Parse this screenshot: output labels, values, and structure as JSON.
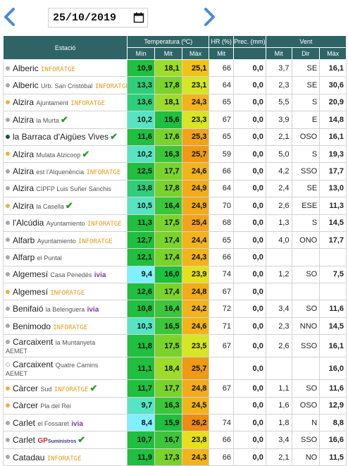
{
  "header": {
    "date": "25/10/2019"
  },
  "columns": {
    "station": "Estació",
    "temperature": "Temperatura (ºC)",
    "hr": "HR (%)",
    "prec": "Prec. (mm)",
    "wind": "Vent",
    "min": "Mín",
    "avg": "Mit",
    "max": "Màx",
    "hr_avg": "Mit",
    "wind_avg": "Mit",
    "wind_dir": "Dir",
    "wind_max": "Màx"
  },
  "colors": {
    "header_bg": "#2e6466",
    "min_scale": [
      "#7ff0ff",
      "#56e4c4",
      "#2ecf7a",
      "#1fbf3f"
    ],
    "avg_scale": [
      "#1fbf3f",
      "#9ddc2a",
      "#d6e622"
    ],
    "max_scale": [
      "#c5e21a",
      "#f2d11a",
      "#f2a31a",
      "#ef8a12"
    ]
  },
  "rows": [
    {
      "name": "Alberic",
      "sub": "",
      "brand": "INFORATGE",
      "brand_type": "inforatge",
      "check": false,
      "dot": "#a7a7a7",
      "min": "10,9",
      "avg": "18,1",
      "max": "25,1",
      "hr": "66",
      "prec": "0,0",
      "wavg": "3,7",
      "wdir": "SE",
      "wmax": "16,1",
      "cmin": "#1fbf3f",
      "cavg": "#9ddc2a",
      "cmax": "#f2c21a"
    },
    {
      "name": "Alberic",
      "sub": "Urb. San Cristóbal",
      "brand": "INFORATGE",
      "brand_type": "inforatge",
      "check": false,
      "dot": "#a7a7a7",
      "min": "13,3",
      "avg": "17,8",
      "max": "23,1",
      "hr": "64",
      "prec": "0,0",
      "wavg": "2,3",
      "wdir": "SE",
      "wmax": "30,6",
      "cmin": "#2ecf7a",
      "cavg": "#79d32a",
      "cmax": "#d6e622"
    },
    {
      "name": "Alzira",
      "sub": "Ajuntament",
      "brand": "INFORATGE",
      "brand_type": "inforatge",
      "check": false,
      "dot": "#e3b44a",
      "min": "13,6",
      "avg": "18,1",
      "max": "24,3",
      "hr": "65",
      "prec": "0,0",
      "wavg": "5,5",
      "wdir": "S",
      "wmax": "20,9",
      "cmin": "#2ecf7a",
      "cavg": "#9ddc2a",
      "cmax": "#f2b41a"
    },
    {
      "name": "Alzira",
      "sub": "la Murta",
      "brand": "",
      "brand_type": "",
      "check": true,
      "dot": "#a7a7a7",
      "min": "10,2",
      "avg": "15,6",
      "max": "23,3",
      "hr": "67",
      "prec": "0,0",
      "wavg": "3,9",
      "wdir": "E",
      "wmax": "14,8",
      "cmin": "#56e4c4",
      "cavg": "#1fbf3f",
      "cmax": "#d6e622"
    },
    {
      "name": "la Barraca d'Aigües Vives",
      "sub": "",
      "brand": "",
      "brand_type": "",
      "check": true,
      "dot": "#1f4f4f",
      "min": "11,6",
      "avg": "17,6",
      "max": "25,3",
      "hr": "65",
      "prec": "0,0",
      "wavg": "2,1",
      "wdir": "OSO",
      "wmax": "16,1",
      "cmin": "#1fbf3f",
      "cavg": "#79d32a",
      "cmax": "#f2a31a"
    },
    {
      "name": "Alzira",
      "sub": "Mulata Alzicoop",
      "brand": "",
      "brand_type": "",
      "check": true,
      "dot": "#e3b44a",
      "min": "10,2",
      "avg": "16,3",
      "max": "25,7",
      "hr": "59",
      "prec": "0,0",
      "wavg": "5,0",
      "wdir": "S",
      "wmax": "19,3",
      "cmin": "#56e4c4",
      "cavg": "#3cc63a",
      "cmax": "#ef9a12"
    },
    {
      "name": "Alzira",
      "sub": "est l'Alquenència",
      "brand": "INFORATGE",
      "brand_type": "inforatge",
      "check": false,
      "dot": "#a7a7a7",
      "min": "12,5",
      "avg": "17,7",
      "max": "24,6",
      "hr": "66",
      "prec": "0,0",
      "wavg": "4,2",
      "wdir": "SSO",
      "wmax": "17,7",
      "cmin": "#1fbf3f",
      "cavg": "#79d32a",
      "cmax": "#f2b41a"
    },
    {
      "name": "Alzira",
      "sub": "CIPFP Luis Suñer Sanchis",
      "brand": "",
      "brand_type": "",
      "check": false,
      "dot": "#a7a7a7",
      "min": "13,8",
      "avg": "17,8",
      "max": "24,9",
      "hr": "64",
      "prec": "0,0",
      "wavg": "2,4",
      "wdir": "SE",
      "wmax": "13,0",
      "cmin": "#2ecf7a",
      "cavg": "#79d32a",
      "cmax": "#f2ac1a"
    },
    {
      "name": "Alzira",
      "sub": "la Casella",
      "brand": "",
      "brand_type": "",
      "check": true,
      "dot": "#e3b44a",
      "min": "10,5",
      "avg": "16,4",
      "max": "24,9",
      "hr": "70",
      "prec": "0,0",
      "wavg": "2,6",
      "wdir": "ESE",
      "wmax": "11,3",
      "cmin": "#56e4c4",
      "cavg": "#3cc63a",
      "cmax": "#f2ac1a"
    },
    {
      "name": "l'Alcúdia",
      "sub": "Ayuntamiento",
      "brand": "INFORATGE",
      "brand_type": "inforatge",
      "check": false,
      "dot": "#a7a7a7",
      "min": "11,3",
      "avg": "17,5",
      "max": "25,4",
      "hr": "68",
      "prec": "0,0",
      "wavg": "1,3",
      "wdir": "S",
      "wmax": "14,5",
      "cmin": "#1fbf3f",
      "cavg": "#79d32a",
      "cmax": "#f2a31a"
    },
    {
      "name": "Alfarb",
      "sub": "Ayuntamiento",
      "brand": "INFORATGE",
      "brand_type": "inforatge",
      "check": false,
      "dot": "#a7a7a7",
      "min": "12,7",
      "avg": "17,4",
      "max": "24,4",
      "hr": "65",
      "prec": "0,0",
      "wavg": "4,0",
      "wdir": "ONO",
      "wmax": "17,7",
      "cmin": "#1fbf3f",
      "cavg": "#79d32a",
      "cmax": "#f2b41a"
    },
    {
      "name": "Alfarp",
      "sub": "el Puntal",
      "brand": "",
      "brand_type": "",
      "check": false,
      "dot": "#a7a7a7",
      "min": "12,1",
      "avg": "17,4",
      "max": "24,3",
      "hr": "66",
      "prec": "0,0",
      "wavg": "",
      "wdir": "",
      "wmax": "",
      "cmin": "#1fbf3f",
      "cavg": "#79d32a",
      "cmax": "#f2b41a"
    },
    {
      "name": "Algemesí",
      "sub": "Casa Penedés",
      "brand": "ivia",
      "brand_type": "ivia",
      "check": false,
      "dot": "#a7a7a7",
      "min": "9,4",
      "avg": "16,0",
      "max": "23,9",
      "hr": "74",
      "prec": "0,0",
      "wavg": "1,2",
      "wdir": "SO",
      "wmax": "7,5",
      "cmin": "#7ff0ff",
      "cavg": "#1fbf3f",
      "cmax": "#e6e01a"
    },
    {
      "name": "Algemesí",
      "sub": "",
      "brand": "INFORATGE",
      "brand_type": "inforatge",
      "check": false,
      "dot": "#e3b44a",
      "min": "12,6",
      "avg": "17,4",
      "max": "24,8",
      "hr": "67",
      "prec": "0,0",
      "wavg": "",
      "wdir": "",
      "wmax": "",
      "cmin": "#1fbf3f",
      "cavg": "#79d32a",
      "cmax": "#f2ac1a"
    },
    {
      "name": "Benifaió",
      "sub": "la Belenguera",
      "brand": "ivia",
      "brand_type": "ivia",
      "check": false,
      "dot": "#a7a7a7",
      "min": "10,8",
      "avg": "16,4",
      "max": "24,2",
      "hr": "72",
      "prec": "0,0",
      "wavg": "3,4",
      "wdir": "SO",
      "wmax": "11,6",
      "cmin": "#1fbf3f",
      "cavg": "#3cc63a",
      "cmax": "#f2b41a"
    },
    {
      "name": "Benimodo",
      "sub": "",
      "brand": "INFORATGE",
      "brand_type": "inforatge",
      "check": false,
      "dot": "#a7a7a7",
      "min": "10,3",
      "avg": "16,5",
      "max": "24,6",
      "hr": "71",
      "prec": "0,0",
      "wavg": "2,3",
      "wdir": "NNO",
      "wmax": "14,5",
      "cmin": "#56e4c4",
      "cavg": "#3cc63a",
      "cmax": "#f2b41a"
    },
    {
      "name": "Carcaixent",
      "sub": "la Muntanyeta",
      "sub2": "AEMET",
      "brand": "",
      "brand_type": "",
      "check": false,
      "dot": "#a7a7a7",
      "min": "11,8",
      "avg": "17,5",
      "max": "23,5",
      "hr": "67",
      "prec": "0,0",
      "wavg": "2,6",
      "wdir": "SSO",
      "wmax": "16,1",
      "cmin": "#1fbf3f",
      "cavg": "#79d32a",
      "cmax": "#d6e622",
      "tall": true
    },
    {
      "name": "Carcaixent",
      "sub": "Quatre Camins",
      "sub2": "AEMET",
      "brand": "",
      "brand_type": "",
      "check": false,
      "dot": "#ffffff",
      "min": "11,1",
      "avg": "18,4",
      "max": "25,7",
      "hr": "",
      "prec": "0,0",
      "wavg": "",
      "wdir": "",
      "wmax": "16,0",
      "cmin": "#1fbf3f",
      "cavg": "#9ddc2a",
      "cmax": "#ef9a12",
      "tall": true
    },
    {
      "name": "Càrcer",
      "sub": "Sud",
      "brand": "INFORATGE",
      "brand_type": "inforatge",
      "check": true,
      "dot": "#e3b44a",
      "min": "11,7",
      "avg": "17,7",
      "max": "24,8",
      "hr": "67",
      "prec": "0,0",
      "wavg": "1,1",
      "wdir": "SO",
      "wmax": "11,6",
      "cmin": "#1fbf3f",
      "cavg": "#79d32a",
      "cmax": "#f2ac1a"
    },
    {
      "name": "Càrcer",
      "sub": "Pla del Rei",
      "brand": "",
      "brand_type": "",
      "check": false,
      "dot": "#e3b44a",
      "min": "9,7",
      "avg": "16,3",
      "max": "24,5",
      "hr": "",
      "prec": "0,0",
      "wavg": "1,6",
      "wdir": "OSO",
      "wmax": "12,9",
      "cmin": "#56e4c4",
      "cavg": "#3cc63a",
      "cmax": "#f2b41a"
    },
    {
      "name": "Carlet",
      "sub": "el Fossaret",
      "brand": "ivia",
      "brand_type": "ivia",
      "check": false,
      "dot": "#a7a7a7",
      "min": "8,4",
      "avg": "15,9",
      "max": "26,2",
      "hr": "74",
      "prec": "0,0",
      "wavg": "1,8",
      "wdir": "N",
      "wmax": "8,8",
      "cmin": "#7ff0ff",
      "cavg": "#1fbf3f",
      "cmax": "#ef8a12"
    },
    {
      "name": "Carlet",
      "sub": "",
      "brand": "GP",
      "brand_type": "gp",
      "brand_sub": "Suministros",
      "check": true,
      "dot": "#a7a7a7",
      "min": "10,7",
      "avg": "16,7",
      "max": "23,8",
      "hr": "66",
      "prec": "0,0",
      "wavg": "3,4",
      "wdir": "SSO",
      "wmax": "16,6",
      "cmin": "#1fbf3f",
      "cavg": "#3cc63a",
      "cmax": "#e6e01a"
    },
    {
      "name": "Catadau",
      "sub": "",
      "brand": "INFORATGE",
      "brand_type": "inforatge",
      "check": false,
      "dot": "#a7a7a7",
      "min": "11,9",
      "avg": "17,3",
      "max": "24,3",
      "hr": "66",
      "prec": "0,0",
      "wavg": "2,1",
      "wdir": "NO",
      "wmax": "11,5",
      "cmin": "#1fbf3f",
      "cavg": "#79d32a",
      "cmax": "#f2b41a"
    }
  ]
}
